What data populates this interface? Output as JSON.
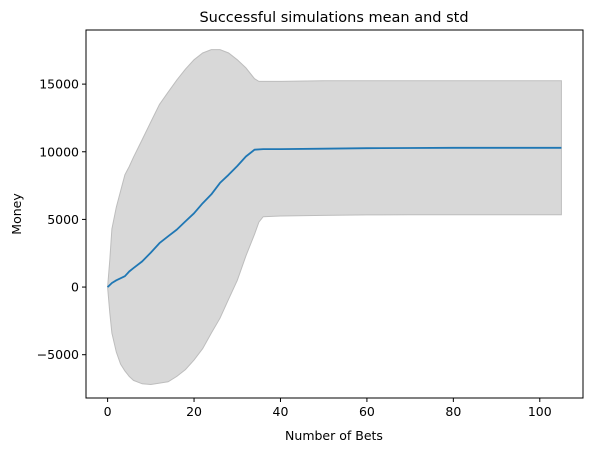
{
  "chart_data": {
    "type": "line",
    "title": "Successful simulations mean and std",
    "xlabel": "Number of Bets",
    "ylabel": "Money",
    "xlim": [
      -5,
      110
    ],
    "ylim": [
      -8200,
      19000
    ],
    "xticks": [
      0,
      20,
      40,
      60,
      80,
      100
    ],
    "xtick_labels": [
      "0",
      "20",
      "40",
      "60",
      "80",
      "100"
    ],
    "yticks": [
      -5000,
      0,
      5000,
      10000,
      15000
    ],
    "ytick_labels": [
      "−5000",
      "0",
      "5000",
      "10000",
      "15000"
    ],
    "grid": false,
    "legend": "none",
    "series": [
      {
        "style": "line",
        "color": "#1f77b4",
        "x": [
          0,
          1,
          2,
          4,
          5,
          6,
          8,
          10,
          12,
          14,
          16,
          18,
          20,
          22,
          24,
          26,
          28,
          30,
          32,
          34,
          36,
          40,
          50,
          60,
          70,
          80,
          90,
          105
        ],
        "y": [
          0,
          300,
          500,
          800,
          1150,
          1400,
          1900,
          2550,
          3250,
          3750,
          4250,
          4850,
          5450,
          6200,
          6850,
          7700,
          8300,
          8950,
          9650,
          10150,
          10200,
          10200,
          10230,
          10260,
          10280,
          10290,
          10290,
          10290
        ]
      },
      {
        "style": "band",
        "color": "#d8d8d8",
        "x": [
          0,
          0.5,
          1,
          2,
          3,
          4,
          5,
          6,
          8,
          10,
          12,
          14,
          16,
          18,
          20,
          22,
          24,
          26,
          28,
          30,
          32,
          34,
          35,
          36,
          40,
          50,
          60,
          70,
          80,
          90,
          105
        ],
        "upper": [
          0,
          2000,
          4300,
          5900,
          7100,
          8300,
          8900,
          9600,
          10900,
          12200,
          13500,
          14400,
          15300,
          16100,
          16800,
          17300,
          17550,
          17550,
          17300,
          16800,
          16200,
          15400,
          15200,
          15200,
          15200,
          15250,
          15250,
          15250,
          15250,
          15250,
          15250
        ],
        "lower": [
          0,
          -1900,
          -3400,
          -4800,
          -5700,
          -6200,
          -6600,
          -6900,
          -7150,
          -7200,
          -7100,
          -7000,
          -6600,
          -6100,
          -5400,
          -4550,
          -3400,
          -2300,
          -900,
          500,
          2300,
          3900,
          4800,
          5200,
          5250,
          5300,
          5330,
          5350,
          5350,
          5350,
          5350
        ]
      }
    ]
  }
}
